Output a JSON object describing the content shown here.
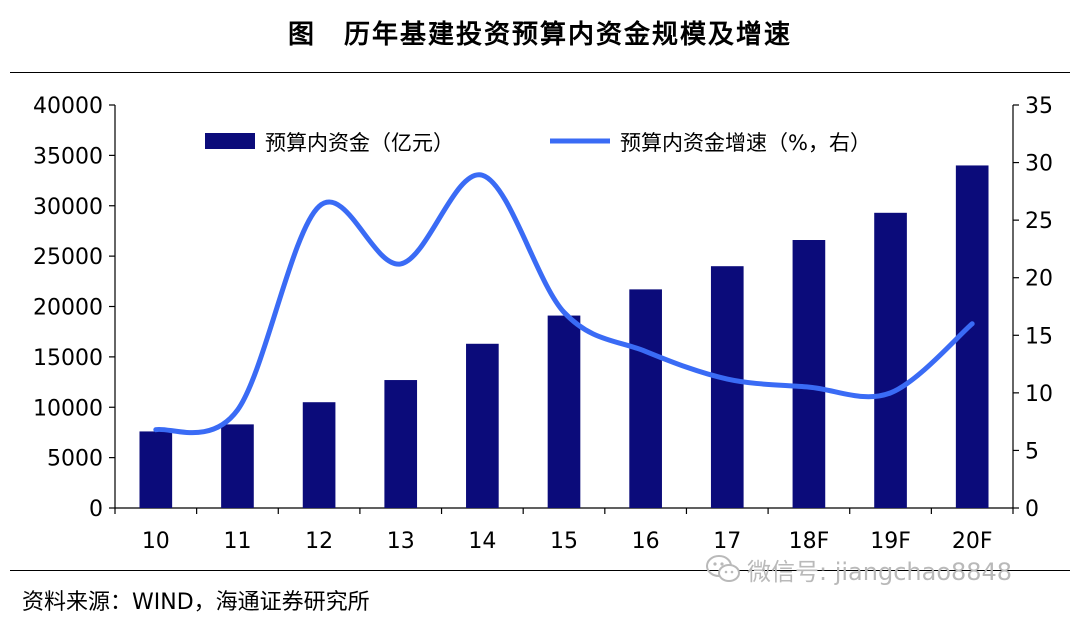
{
  "header": {
    "figure_label": "图",
    "title": "历年基建投资预算内资金规模及增速"
  },
  "chart_data": {
    "type": "bar",
    "categories": [
      "10",
      "11",
      "12",
      "13",
      "14",
      "15",
      "16",
      "17",
      "18F",
      "19F",
      "20F"
    ],
    "series": [
      {
        "name": "预算内资金（亿元）",
        "type": "bar",
        "axis": "left",
        "color": "#0b0b7a",
        "values": [
          7600,
          8300,
          10500,
          12700,
          16300,
          19100,
          21700,
          24000,
          26600,
          29300,
          34000
        ]
      },
      {
        "name": "预算内资金增速（%，右）",
        "type": "line",
        "axis": "right",
        "color": "#3a6bf5",
        "values": [
          6.8,
          8.5,
          26.2,
          21.2,
          28.9,
          17.0,
          13.6,
          11.2,
          10.5,
          10.0,
          16.0
        ]
      }
    ],
    "y_left": {
      "ylim": [
        0,
        40000
      ],
      "ticks": [
        "0",
        "5000",
        "10000",
        "15000",
        "20000",
        "25000",
        "30000",
        "35000",
        "40000"
      ]
    },
    "y_right": {
      "ylim": [
        0,
        35
      ],
      "ticks": [
        "0",
        "5",
        "10",
        "15",
        "20",
        "25",
        "30",
        "35"
      ]
    },
    "legend_position": "top",
    "grid": false
  },
  "source": "资料来源：WIND，海通证券研究所",
  "watermark": {
    "text": "微信号: jiangchao8848",
    "icon": "wechat-icon"
  }
}
